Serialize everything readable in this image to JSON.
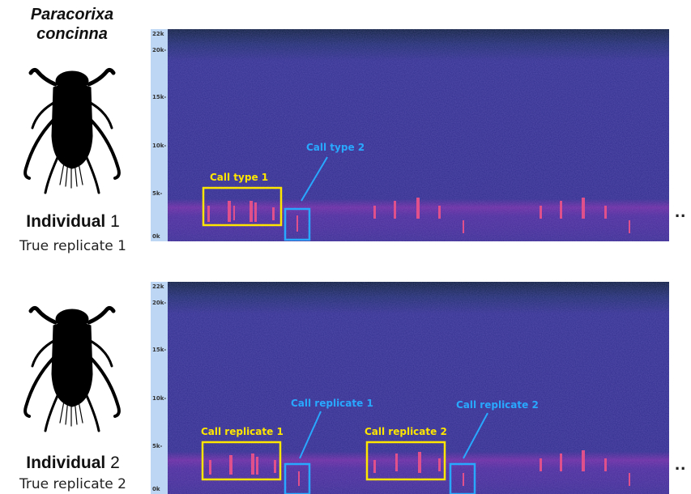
{
  "species": "Paracorixa concinna",
  "species_line1": "Paracorixa",
  "species_line2": "concinna",
  "colors": {
    "annotation_yellow": "#ffe600",
    "annotation_cyan": "#29a8ff",
    "spectrogram_bg": "#2d2a8a",
    "axis_strip": "#bcd6f4"
  },
  "y_axis_ticks": [
    "22k",
    "20k-",
    "15k-",
    "10k-",
    "5k-",
    "0k"
  ],
  "ellipsis": "..",
  "panels": [
    {
      "individual_prefix": "Individual ",
      "individual_number": "1",
      "replicate": "True replicate 1",
      "annotations": {
        "yellow_1": "Call type 1",
        "cyan_1": "Call type 2"
      }
    },
    {
      "individual_prefix": "Individual ",
      "individual_number": "2",
      "replicate": "True replicate 2",
      "annotations": {
        "yellow_1": "Call replicate 1",
        "cyan_1": "Call replicate 1",
        "yellow_2": "Call replicate 2",
        "cyan_2": "Call replicate 2"
      }
    }
  ]
}
